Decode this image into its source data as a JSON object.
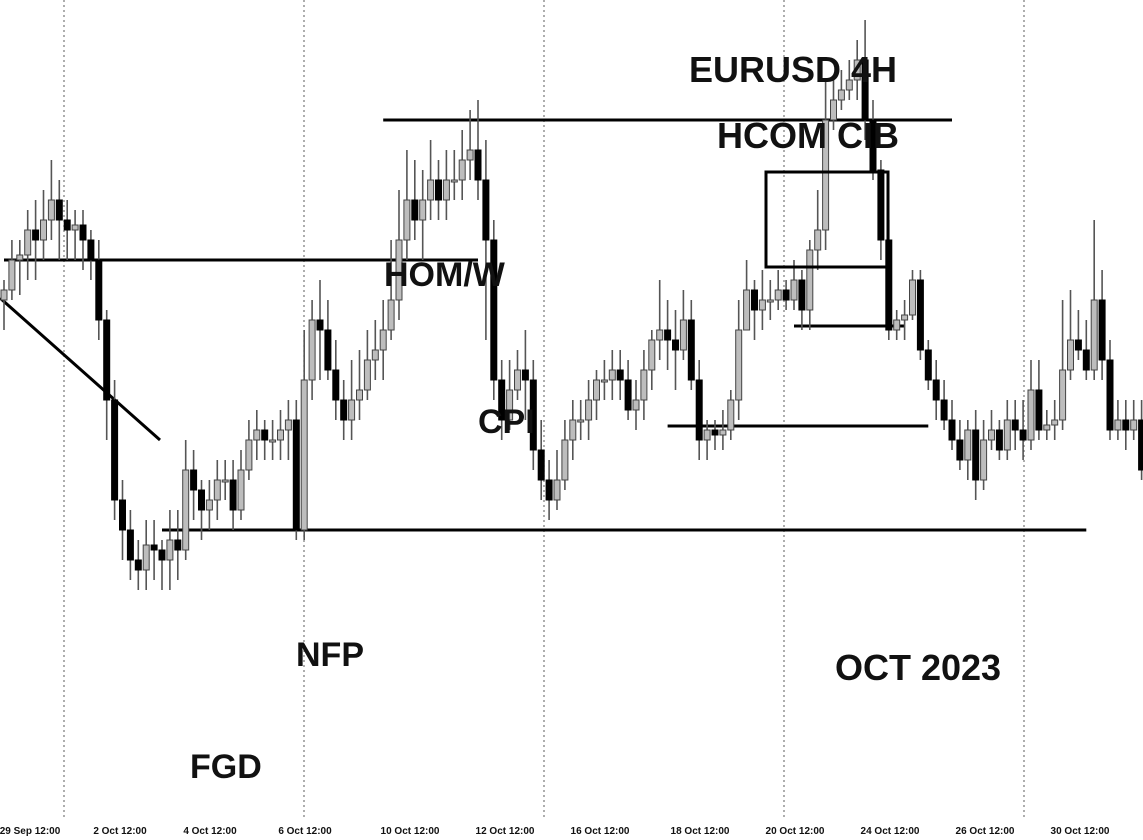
{
  "chart_data": {
    "type": "candlestick",
    "title": "EURUSD 4H",
    "subtitle": "HCOM CIB",
    "month_label": "OCT 2023",
    "x_tick_labels": [
      "29 Sep 12:00",
      "2 Oct 12:00",
      "4 Oct 12:00",
      "6 Oct 12:00",
      "10 Oct 12:00",
      "12 Oct 12:00",
      "16 Oct 12:00",
      "18 Oct 12:00",
      "20 Oct 12:00",
      "24 Oct 12:00",
      "26 Oct 12:00",
      "30 Oct 12:00"
    ],
    "annotations": [
      "HOM/W",
      "CPI",
      "NFP",
      "FGD"
    ],
    "grid": "vertical dotted",
    "candles_note": "price axis not printed; candle values are relative levels",
    "candles": [
      [
        500,
        510,
        470,
        520
      ],
      [
        510,
        540,
        500,
        560
      ],
      [
        540,
        545,
        505,
        560
      ],
      [
        545,
        570,
        520,
        590
      ],
      [
        570,
        560,
        520,
        600
      ],
      [
        560,
        580,
        540,
        610
      ],
      [
        580,
        600,
        560,
        640
      ],
      [
        600,
        580,
        540,
        620
      ],
      [
        580,
        570,
        540,
        600
      ],
      [
        570,
        575,
        540,
        590
      ],
      [
        575,
        560,
        530,
        590
      ],
      [
        560,
        540,
        520,
        570
      ],
      [
        540,
        480,
        460,
        560
      ],
      [
        480,
        400,
        360,
        490
      ],
      [
        400,
        300,
        280,
        420
      ],
      [
        300,
        270,
        240,
        320
      ],
      [
        270,
        240,
        220,
        290
      ],
      [
        240,
        230,
        210,
        260
      ],
      [
        230,
        255,
        210,
        280
      ],
      [
        255,
        250,
        220,
        280
      ],
      [
        250,
        240,
        210,
        260
      ],
      [
        240,
        260,
        210,
        290
      ],
      [
        260,
        250,
        220,
        290
      ],
      [
        250,
        330,
        240,
        360
      ],
      [
        330,
        310,
        280,
        350
      ],
      [
        310,
        290,
        260,
        320
      ],
      [
        290,
        300,
        270,
        320
      ],
      [
        300,
        320,
        280,
        340
      ],
      [
        320,
        320,
        300,
        340
      ],
      [
        320,
        290,
        270,
        340
      ],
      [
        290,
        330,
        280,
        350
      ],
      [
        330,
        360,
        320,
        380
      ],
      [
        360,
        370,
        340,
        390
      ],
      [
        370,
        360,
        340,
        380
      ],
      [
        360,
        360,
        340,
        380
      ],
      [
        360,
        370,
        340,
        390
      ],
      [
        370,
        380,
        340,
        400
      ],
      [
        380,
        270,
        260,
        400
      ],
      [
        270,
        420,
        260,
        470
      ],
      [
        420,
        480,
        400,
        500
      ],
      [
        480,
        470,
        420,
        520
      ],
      [
        470,
        430,
        420,
        500
      ],
      [
        430,
        400,
        380,
        460
      ],
      [
        400,
        380,
        360,
        420
      ],
      [
        380,
        400,
        360,
        440
      ],
      [
        400,
        410,
        380,
        450
      ],
      [
        410,
        440,
        400,
        470
      ],
      [
        440,
        450,
        420,
        480
      ],
      [
        450,
        470,
        420,
        500
      ],
      [
        470,
        500,
        460,
        560
      ],
      [
        500,
        560,
        480,
        610
      ],
      [
        560,
        600,
        540,
        650
      ],
      [
        600,
        580,
        560,
        640
      ],
      [
        580,
        600,
        540,
        630
      ],
      [
        600,
        620,
        580,
        660
      ],
      [
        620,
        600,
        580,
        640
      ],
      [
        600,
        620,
        580,
        650
      ],
      [
        620,
        620,
        600,
        650
      ],
      [
        620,
        640,
        600,
        670
      ],
      [
        640,
        650,
        620,
        690
      ],
      [
        650,
        620,
        600,
        700
      ],
      [
        620,
        560,
        460,
        660
      ],
      [
        560,
        420,
        400,
        580
      ],
      [
        420,
        380,
        360,
        440
      ],
      [
        380,
        410,
        370,
        440
      ],
      [
        410,
        430,
        400,
        450
      ],
      [
        430,
        420,
        380,
        470
      ],
      [
        420,
        350,
        330,
        440
      ],
      [
        350,
        320,
        300,
        380
      ],
      [
        320,
        300,
        280,
        340
      ],
      [
        300,
        320,
        290,
        350
      ],
      [
        320,
        360,
        310,
        380
      ],
      [
        360,
        380,
        340,
        400
      ],
      [
        380,
        380,
        360,
        400
      ],
      [
        380,
        400,
        360,
        420
      ],
      [
        400,
        420,
        380,
        430
      ],
      [
        420,
        420,
        400,
        440
      ],
      [
        420,
        430,
        400,
        450
      ],
      [
        430,
        420,
        400,
        450
      ],
      [
        420,
        390,
        380,
        440
      ],
      [
        390,
        400,
        370,
        420
      ],
      [
        400,
        430,
        380,
        450
      ],
      [
        430,
        460,
        410,
        470
      ],
      [
        460,
        470,
        440,
        520
      ],
      [
        470,
        460,
        430,
        500
      ],
      [
        460,
        450,
        410,
        490
      ],
      [
        450,
        480,
        440,
        510
      ],
      [
        480,
        420,
        410,
        500
      ],
      [
        420,
        360,
        340,
        440
      ],
      [
        360,
        370,
        340,
        380
      ],
      [
        370,
        365,
        350,
        380
      ],
      [
        365,
        370,
        350,
        390
      ],
      [
        370,
        400,
        360,
        410
      ],
      [
        400,
        470,
        380,
        500
      ],
      [
        470,
        510,
        470,
        540
      ],
      [
        510,
        490,
        460,
        520
      ],
      [
        490,
        500,
        470,
        530
      ],
      [
        500,
        500,
        480,
        520
      ],
      [
        500,
        510,
        490,
        530
      ],
      [
        510,
        500,
        490,
        520
      ],
      [
        500,
        520,
        490,
        540
      ],
      [
        520,
        490,
        470,
        530
      ],
      [
        490,
        550,
        470,
        560
      ],
      [
        550,
        570,
        530,
        610
      ],
      [
        570,
        680,
        550,
        720
      ],
      [
        680,
        700,
        670,
        720
      ],
      [
        700,
        710,
        690,
        730
      ],
      [
        710,
        720,
        700,
        740
      ],
      [
        720,
        740,
        700,
        760
      ],
      [
        740,
        680,
        660,
        780
      ],
      [
        680,
        630,
        620,
        700
      ],
      [
        630,
        560,
        540,
        640
      ],
      [
        560,
        470,
        460,
        580
      ],
      [
        470,
        480,
        460,
        490
      ],
      [
        480,
        485,
        460,
        500
      ],
      [
        485,
        520,
        480,
        530
      ],
      [
        520,
        450,
        440,
        530
      ],
      [
        450,
        420,
        410,
        460
      ],
      [
        420,
        400,
        380,
        440
      ],
      [
        400,
        380,
        370,
        420
      ],
      [
        380,
        360,
        350,
        400
      ],
      [
        360,
        340,
        330,
        380
      ],
      [
        340,
        370,
        320,
        380
      ],
      [
        370,
        320,
        300,
        390
      ],
      [
        320,
        360,
        310,
        380
      ],
      [
        360,
        370,
        350,
        390
      ],
      [
        370,
        350,
        340,
        380
      ],
      [
        350,
        380,
        340,
        400
      ],
      [
        380,
        370,
        350,
        400
      ],
      [
        370,
        360,
        340,
        400
      ],
      [
        360,
        410,
        350,
        440
      ],
      [
        410,
        370,
        360,
        440
      ],
      [
        370,
        375,
        360,
        390
      ],
      [
        375,
        380,
        360,
        400
      ],
      [
        380,
        430,
        370,
        500
      ],
      [
        430,
        460,
        420,
        510
      ],
      [
        460,
        450,
        440,
        490
      ],
      [
        450,
        430,
        420,
        480
      ],
      [
        430,
        500,
        420,
        580
      ],
      [
        500,
        440,
        420,
        530
      ],
      [
        440,
        370,
        360,
        460
      ],
      [
        370,
        380,
        360,
        400
      ],
      [
        380,
        370,
        350,
        400
      ],
      [
        370,
        380,
        360,
        400
      ],
      [
        380,
        330,
        320,
        400
      ],
      [
        330,
        300,
        290,
        360
      ]
    ],
    "levels": [
      {
        "from": 0,
        "to": 60,
        "price": 540
      },
      {
        "from": 48,
        "to": 120,
        "price": 680
      },
      {
        "from": 20,
        "to": 137,
        "price": 270
      },
      {
        "from": 84,
        "to": 117,
        "price": 374
      },
      {
        "from": 100,
        "to": 114,
        "price": 474
      }
    ]
  }
}
